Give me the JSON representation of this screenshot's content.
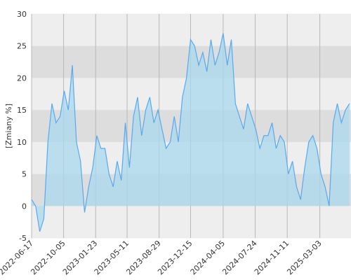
{
  "chart_data": {
    "type": "area",
    "ylabel": "[Zmiany %]",
    "x": [
      "2022-06-17",
      "2022-07-01",
      "2022-07-15",
      "2022-07-29",
      "2022-08-12",
      "2022-08-26",
      "2022-09-09",
      "2022-09-23",
      "2022-10-07",
      "2022-10-21",
      "2022-11-04",
      "2022-11-18",
      "2022-12-02",
      "2022-12-16",
      "2022-12-30",
      "2023-01-13",
      "2023-01-27",
      "2023-02-10",
      "2023-02-24",
      "2023-03-10",
      "2023-03-24",
      "2023-04-07",
      "2023-04-21",
      "2023-05-05",
      "2023-05-19",
      "2023-06-02",
      "2023-06-16",
      "2023-06-30",
      "2023-07-14",
      "2023-07-28",
      "2023-08-11",
      "2023-08-25",
      "2023-09-08",
      "2023-09-22",
      "2023-10-06",
      "2023-10-20",
      "2023-11-03",
      "2023-11-17",
      "2023-12-01",
      "2023-12-15",
      "2023-12-29",
      "2024-01-12",
      "2024-01-26",
      "2024-02-09",
      "2024-02-23",
      "2024-03-08",
      "2024-03-22",
      "2024-04-05",
      "2024-04-19",
      "2024-05-03",
      "2024-05-17",
      "2024-05-31",
      "2024-06-14",
      "2024-06-28",
      "2024-07-12",
      "2024-07-26",
      "2024-08-09",
      "2024-08-23",
      "2024-09-06",
      "2024-09-20",
      "2024-10-04",
      "2024-10-18",
      "2024-11-01",
      "2024-11-15",
      "2024-11-29",
      "2024-12-13",
      "2024-12-27",
      "2025-01-10",
      "2025-01-24",
      "2025-02-07",
      "2025-02-21",
      "2025-03-07",
      "2025-03-21",
      "2025-04-04",
      "2025-04-18",
      "2025-05-02",
      "2025-05-16",
      "2025-05-30",
      "2025-06-13"
    ],
    "values": [
      1,
      0,
      -4,
      -2,
      10,
      16,
      13,
      14,
      18,
      15,
      22,
      10,
      7,
      -1,
      3,
      6,
      11,
      9,
      9,
      5,
      3,
      7,
      4,
      13,
      6,
      14,
      17,
      11,
      15,
      17,
      13,
      15,
      12,
      9,
      10,
      14,
      10,
      17,
      20,
      26,
      25,
      22,
      24,
      21,
      26,
      22,
      24,
      27,
      22,
      26,
      16,
      14,
      12,
      16,
      14,
      12,
      9,
      11,
      11,
      13,
      9,
      11,
      10,
      5,
      7,
      3,
      1,
      6,
      10,
      11,
      9,
      5,
      3,
      0,
      13,
      16,
      13,
      15,
      16
    ],
    "color": "#5aa8ee",
    "fill": "#a8d8ee",
    "xlim": [
      "2022-06-17",
      "2025-06-18"
    ],
    "xticks": [
      "2022-06-17",
      "2022-10-05",
      "2023-01-23",
      "2023-05-11",
      "2023-08-29",
      "2023-12-15",
      "2024-04-05",
      "2024-07-24",
      "2024-11-11",
      "2025-03-03"
    ],
    "ylim": [
      -5,
      30
    ],
    "yticks": [
      -5,
      0,
      5,
      10,
      15,
      20,
      25,
      30
    ],
    "grid": true
  }
}
